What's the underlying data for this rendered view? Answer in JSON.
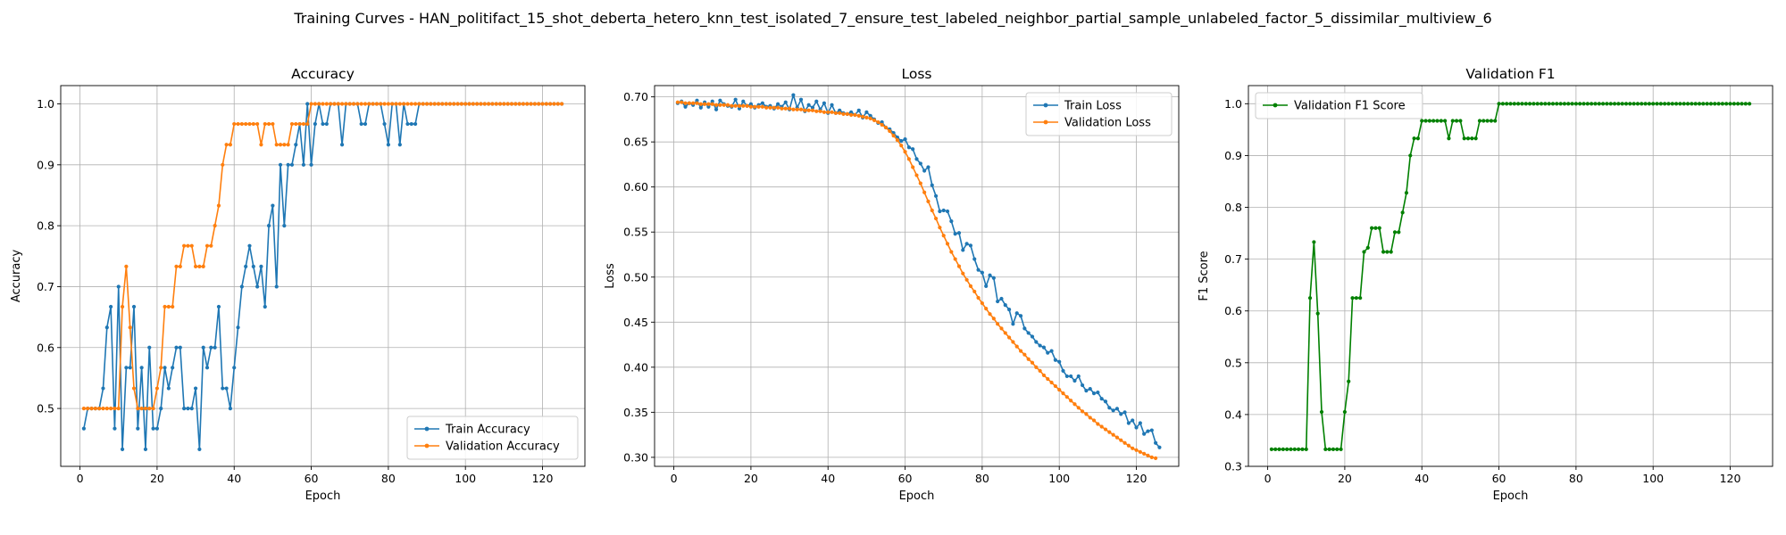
{
  "suptitle": "Training Curves - HAN_politifact_15_shot_deberta_hetero_knn_test_isolated_7_ensure_test_labeled_neighbor_partial_sample_unlabeled_factor_5_dissimilar_multiview_6",
  "colors": {
    "train": "#1f77b4",
    "validation": "#ff7f0e",
    "f1": "#008000",
    "grid": "#b0b0b0"
  },
  "chart_data": [
    {
      "type": "line",
      "title": "Accuracy",
      "xlabel": "Epoch",
      "ylabel": "Accuracy",
      "xlim": [
        -5,
        131
      ],
      "ylim": [
        0.405,
        1.03
      ],
      "xticks": [
        0,
        20,
        40,
        60,
        80,
        100,
        120
      ],
      "yticks": [
        0.5,
        0.6,
        0.7,
        0.8,
        0.9,
        1.0
      ],
      "ytick_labels": [
        "0.5",
        "0.6",
        "0.7",
        "0.8",
        "0.9",
        "1.0"
      ],
      "grid": true,
      "legend": "lower right",
      "series": [
        {
          "name": "Train Accuracy",
          "color_key": "train",
          "values": [
            0.467,
            0.5,
            0.5,
            0.5,
            0.5,
            0.533,
            0.633,
            0.667,
            0.467,
            0.7,
            0.433,
            0.567,
            0.567,
            0.667,
            0.467,
            0.567,
            0.433,
            0.6,
            0.467,
            0.467,
            0.5,
            0.567,
            0.533,
            0.567,
            0.6,
            0.6,
            0.5,
            0.5,
            0.5,
            0.533,
            0.433,
            0.6,
            0.567,
            0.6,
            0.6,
            0.667,
            0.533,
            0.533,
            0.5,
            0.567,
            0.633,
            0.7,
            0.733,
            0.767,
            0.733,
            0.7,
            0.733,
            0.667,
            0.8,
            0.833,
            0.7,
            0.9,
            0.8,
            0.9,
            0.9,
            0.933,
            0.967,
            0.9,
            1.0,
            0.9,
            0.967,
            1.0,
            0.967,
            0.967,
            1.0,
            1.0,
            1.0,
            0.933,
            1.0,
            1.0,
            1.0,
            1.0,
            0.967,
            0.967,
            1.0,
            1.0,
            1.0,
            1.0,
            0.967,
            0.933,
            1.0,
            1.0,
            0.933,
            1.0,
            0.967,
            0.967,
            0.967,
            1.0,
            1.0,
            1.0,
            1.0,
            1.0,
            1.0,
            1.0,
            1.0,
            1.0,
            1.0,
            1.0,
            1.0,
            1.0,
            1.0,
            1.0,
            1.0,
            1.0,
            1.0,
            1.0,
            1.0,
            1.0,
            1.0,
            1.0,
            1.0,
            1.0,
            1.0,
            1.0,
            1.0,
            1.0,
            1.0,
            1.0,
            1.0,
            1.0,
            1.0,
            1.0,
            1.0,
            1.0,
            1.0
          ]
        },
        {
          "name": "Validation Accuracy",
          "color_key": "validation",
          "values": [
            0.5,
            0.5,
            0.5,
            0.5,
            0.5,
            0.5,
            0.5,
            0.5,
            0.5,
            0.5,
            0.667,
            0.733,
            0.633,
            0.533,
            0.5,
            0.5,
            0.5,
            0.5,
            0.5,
            0.533,
            0.567,
            0.667,
            0.667,
            0.667,
            0.733,
            0.733,
            0.767,
            0.767,
            0.767,
            0.733,
            0.733,
            0.733,
            0.767,
            0.767,
            0.8,
            0.833,
            0.9,
            0.933,
            0.933,
            0.967,
            0.967,
            0.967,
            0.967,
            0.967,
            0.967,
            0.967,
            0.933,
            0.967,
            0.967,
            0.967,
            0.933,
            0.933,
            0.933,
            0.933,
            0.967,
            0.967,
            0.967,
            0.967,
            0.967,
            1.0,
            1.0,
            1.0,
            1.0,
            1.0,
            1.0,
            1.0,
            1.0,
            1.0,
            1.0,
            1.0,
            1.0,
            1.0,
            1.0,
            1.0,
            1.0,
            1.0,
            1.0,
            1.0,
            1.0,
            1.0,
            1.0,
            1.0,
            1.0,
            1.0,
            1.0,
            1.0,
            1.0,
            1.0,
            1.0,
            1.0,
            1.0,
            1.0,
            1.0,
            1.0,
            1.0,
            1.0,
            1.0,
            1.0,
            1.0,
            1.0,
            1.0,
            1.0,
            1.0,
            1.0,
            1.0,
            1.0,
            1.0,
            1.0,
            1.0,
            1.0,
            1.0,
            1.0,
            1.0,
            1.0,
            1.0,
            1.0,
            1.0,
            1.0,
            1.0,
            1.0,
            1.0,
            1.0,
            1.0,
            1.0,
            1.0
          ]
        }
      ]
    },
    {
      "type": "line",
      "title": "Loss",
      "xlabel": "Epoch",
      "ylabel": "Loss",
      "xlim": [
        -5,
        131
      ],
      "ylim": [
        0.29,
        0.7125
      ],
      "xticks": [
        0,
        20,
        40,
        60,
        80,
        100,
        120
      ],
      "yticks": [
        0.3,
        0.35,
        0.4,
        0.45,
        0.5,
        0.55,
        0.6,
        0.65,
        0.7
      ],
      "ytick_labels": [
        "0.30",
        "0.35",
        "0.40",
        "0.45",
        "0.50",
        "0.55",
        "0.60",
        "0.65",
        "0.70"
      ],
      "grid": true,
      "legend": "upper right",
      "series": [
        {
          "name": "Train Loss",
          "color_key": "train",
          "values": [
            0.693,
            0.695,
            0.689,
            0.693,
            0.691,
            0.696,
            0.688,
            0.694,
            0.689,
            0.695,
            0.686,
            0.696,
            0.692,
            0.69,
            0.689,
            0.697,
            0.687,
            0.695,
            0.69,
            0.692,
            0.688,
            0.691,
            0.693,
            0.689,
            0.69,
            0.687,
            0.692,
            0.689,
            0.694,
            0.686,
            0.702,
            0.688,
            0.697,
            0.684,
            0.691,
            0.688,
            0.695,
            0.686,
            0.693,
            0.682,
            0.691,
            0.682,
            0.685,
            0.682,
            0.681,
            0.683,
            0.68,
            0.685,
            0.677,
            0.683,
            0.679,
            0.675,
            0.671,
            0.672,
            0.666,
            0.664,
            0.66,
            0.655,
            0.651,
            0.653,
            0.644,
            0.642,
            0.631,
            0.626,
            0.618,
            0.622,
            0.602,
            0.59,
            0.573,
            0.574,
            0.573,
            0.562,
            0.548,
            0.549,
            0.53,
            0.537,
            0.535,
            0.52,
            0.508,
            0.505,
            0.49,
            0.502,
            0.499,
            0.473,
            0.476,
            0.469,
            0.464,
            0.448,
            0.46,
            0.457,
            0.443,
            0.438,
            0.434,
            0.428,
            0.424,
            0.422,
            0.416,
            0.418,
            0.408,
            0.406,
            0.396,
            0.39,
            0.39,
            0.385,
            0.39,
            0.38,
            0.374,
            0.376,
            0.371,
            0.372,
            0.365,
            0.362,
            0.355,
            0.352,
            0.354,
            0.348,
            0.35,
            0.338,
            0.341,
            0.333,
            0.338,
            0.326,
            0.329,
            0.33,
            0.316,
            0.311
          ]
        },
        {
          "name": "Validation Loss",
          "color_key": "validation",
          "values": [
            0.694,
            0.694,
            0.693,
            0.693,
            0.693,
            0.693,
            0.692,
            0.692,
            0.692,
            0.692,
            0.691,
            0.691,
            0.691,
            0.691,
            0.69,
            0.69,
            0.69,
            0.69,
            0.69,
            0.689,
            0.689,
            0.689,
            0.689,
            0.688,
            0.688,
            0.688,
            0.688,
            0.687,
            0.687,
            0.687,
            0.686,
            0.686,
            0.686,
            0.685,
            0.685,
            0.685,
            0.684,
            0.684,
            0.683,
            0.683,
            0.683,
            0.682,
            0.682,
            0.681,
            0.681,
            0.68,
            0.68,
            0.679,
            0.678,
            0.677,
            0.676,
            0.674,
            0.672,
            0.669,
            0.666,
            0.662,
            0.657,
            0.652,
            0.646,
            0.639,
            0.631,
            0.622,
            0.613,
            0.604,
            0.594,
            0.584,
            0.574,
            0.565,
            0.555,
            0.546,
            0.537,
            0.528,
            0.52,
            0.512,
            0.504,
            0.497,
            0.49,
            0.484,
            0.477,
            0.471,
            0.465,
            0.459,
            0.454,
            0.448,
            0.443,
            0.438,
            0.433,
            0.428,
            0.423,
            0.418,
            0.414,
            0.409,
            0.405,
            0.4,
            0.396,
            0.391,
            0.387,
            0.383,
            0.379,
            0.375,
            0.371,
            0.367,
            0.363,
            0.359,
            0.355,
            0.351,
            0.348,
            0.344,
            0.341,
            0.337,
            0.334,
            0.331,
            0.328,
            0.325,
            0.322,
            0.319,
            0.316,
            0.313,
            0.31,
            0.308,
            0.306,
            0.304,
            0.302,
            0.3,
            0.299
          ]
        }
      ]
    },
    {
      "type": "line",
      "title": "Validation F1",
      "xlabel": "Epoch",
      "ylabel": "F1 Score",
      "xlim": [
        -5,
        131
      ],
      "ylim": [
        0.3,
        1.035
      ],
      "xticks": [
        0,
        20,
        40,
        60,
        80,
        100,
        120
      ],
      "yticks": [
        0.3,
        0.4,
        0.5,
        0.6,
        0.7,
        0.8,
        0.9,
        1.0
      ],
      "ytick_labels": [
        "0.3",
        "0.4",
        "0.5",
        "0.6",
        "0.7",
        "0.8",
        "0.9",
        "1.0"
      ],
      "grid": true,
      "legend": "upper left",
      "series": [
        {
          "name": "Validation F1 Score",
          "color_key": "f1",
          "values": [
            0.333,
            0.333,
            0.333,
            0.333,
            0.333,
            0.333,
            0.333,
            0.333,
            0.333,
            0.333,
            0.625,
            0.733,
            0.595,
            0.405,
            0.333,
            0.333,
            0.333,
            0.333,
            0.333,
            0.405,
            0.464,
            0.625,
            0.625,
            0.625,
            0.714,
            0.722,
            0.76,
            0.76,
            0.76,
            0.714,
            0.714,
            0.714,
            0.752,
            0.752,
            0.79,
            0.828,
            0.9,
            0.933,
            0.933,
            0.967,
            0.967,
            0.967,
            0.967,
            0.967,
            0.967,
            0.967,
            0.933,
            0.967,
            0.967,
            0.967,
            0.933,
            0.933,
            0.933,
            0.933,
            0.967,
            0.967,
            0.967,
            0.967,
            0.967,
            1.0,
            1.0,
            1.0,
            1.0,
            1.0,
            1.0,
            1.0,
            1.0,
            1.0,
            1.0,
            1.0,
            1.0,
            1.0,
            1.0,
            1.0,
            1.0,
            1.0,
            1.0,
            1.0,
            1.0,
            1.0,
            1.0,
            1.0,
            1.0,
            1.0,
            1.0,
            1.0,
            1.0,
            1.0,
            1.0,
            1.0,
            1.0,
            1.0,
            1.0,
            1.0,
            1.0,
            1.0,
            1.0,
            1.0,
            1.0,
            1.0,
            1.0,
            1.0,
            1.0,
            1.0,
            1.0,
            1.0,
            1.0,
            1.0,
            1.0,
            1.0,
            1.0,
            1.0,
            1.0,
            1.0,
            1.0,
            1.0,
            1.0,
            1.0,
            1.0,
            1.0,
            1.0,
            1.0,
            1.0,
            1.0,
            1.0
          ]
        }
      ]
    }
  ]
}
